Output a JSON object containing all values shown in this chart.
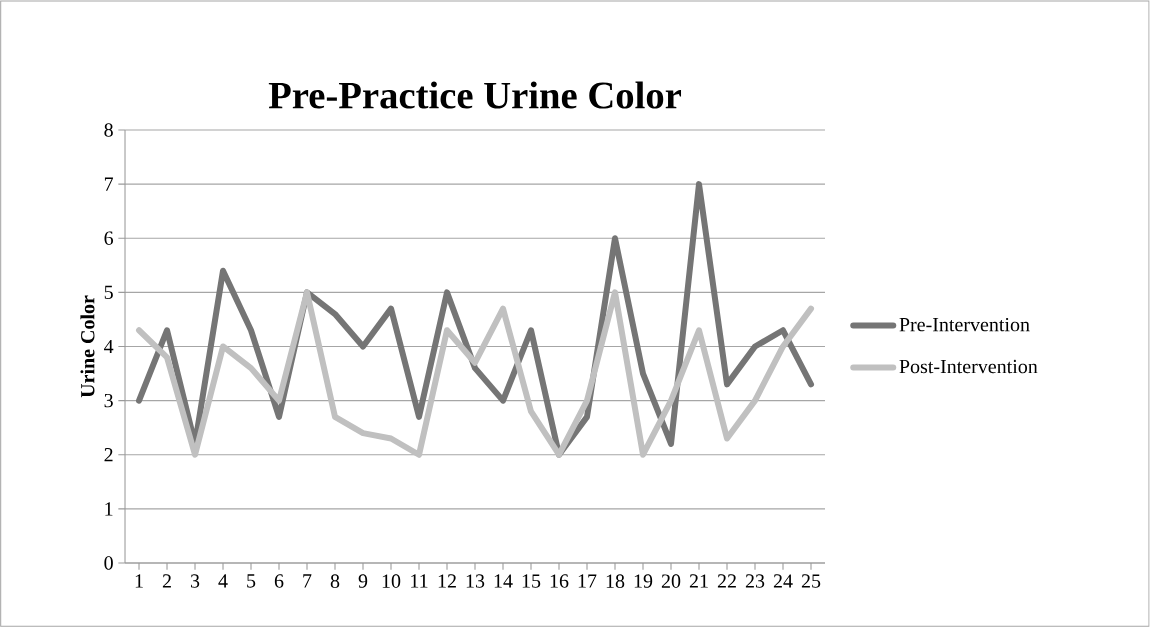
{
  "chart_data": {
    "type": "line",
    "title": "Pre-Practice Urine Color",
    "ylabel": "Urine Color",
    "categories": [
      "1",
      "2",
      "3",
      "4",
      "5",
      "6",
      "7",
      "8",
      "9",
      "10",
      "11",
      "12",
      "13",
      "14",
      "15",
      "16",
      "17",
      "18",
      "19",
      "20",
      "21",
      "22",
      "23",
      "24",
      "25"
    ],
    "series": [
      {
        "name": "Pre-Intervention",
        "color": "#757575",
        "values": [
          3.0,
          4.3,
          2.2,
          5.4,
          4.3,
          2.7,
          5.0,
          4.6,
          4.0,
          4.7,
          2.7,
          5.0,
          3.6,
          3.0,
          4.3,
          2.0,
          2.7,
          6.0,
          3.5,
          2.2,
          7.0,
          3.3,
          4.0,
          4.3,
          3.3
        ]
      },
      {
        "name": "Post-Intervention",
        "color": "#c0c0c0",
        "values": [
          4.3,
          3.8,
          2.0,
          4.0,
          3.6,
          3.0,
          5.0,
          2.7,
          2.4,
          2.3,
          2.0,
          4.3,
          3.7,
          4.7,
          2.8,
          2.0,
          3.0,
          5.0,
          2.0,
          3.0,
          4.3,
          2.3,
          3.0,
          4.0,
          4.7
        ]
      }
    ],
    "ylim": [
      0,
      8
    ],
    "yticks": [
      0,
      1,
      2,
      3,
      4,
      5,
      6,
      7,
      8
    ],
    "grid": "y",
    "legend": "right"
  }
}
